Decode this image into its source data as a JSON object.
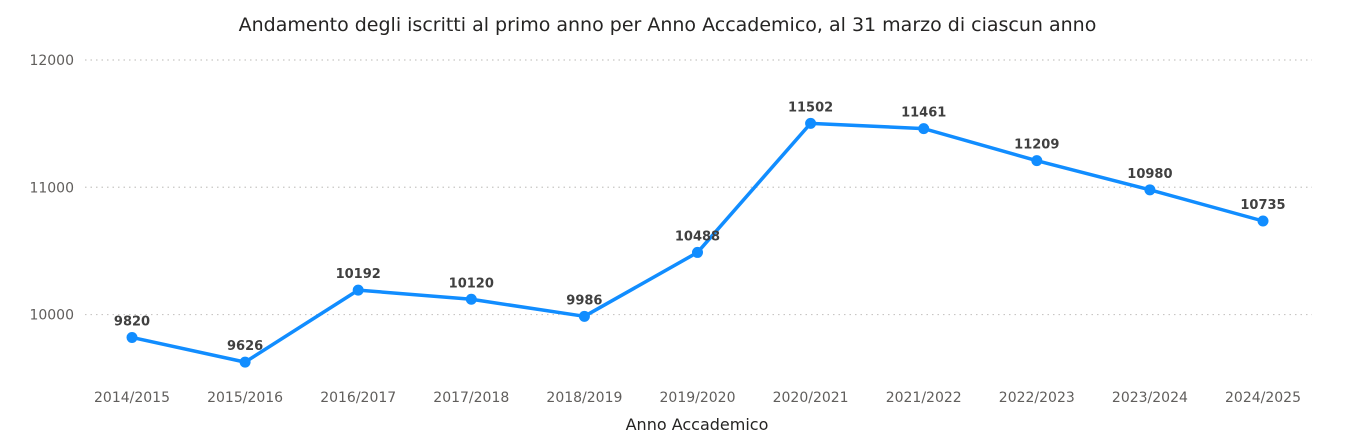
{
  "chart_data": {
    "type": "line",
    "title": "Andamento degli iscritti al primo anno per Anno Accademico, al 31 marzo di ciascun anno",
    "xlabel": "Anno Accademico",
    "ylabel": "",
    "categories": [
      "2014/2015",
      "2015/2016",
      "2016/2017",
      "2017/2018",
      "2018/2019",
      "2019/2020",
      "2020/2021",
      "2021/2022",
      "2022/2023",
      "2023/2024",
      "2024/2025"
    ],
    "series": [
      {
        "values": [
          9820,
          9626,
          10192,
          10120,
          9986,
          10488,
          11502,
          11461,
          11209,
          10980,
          10735
        ]
      }
    ],
    "data_labels": [
      "9820",
      "9626",
      "10192",
      "10120",
      "9986",
      "10488",
      "11502",
      "11461",
      "11209",
      "10980",
      "10735"
    ],
    "yticks": [
      10000,
      11000,
      12000
    ],
    "ytick_labels": [
      "10000",
      "11000",
      "12000"
    ],
    "ylim": [
      9580,
      12000
    ],
    "grid": true,
    "line_color": "#118dff"
  }
}
